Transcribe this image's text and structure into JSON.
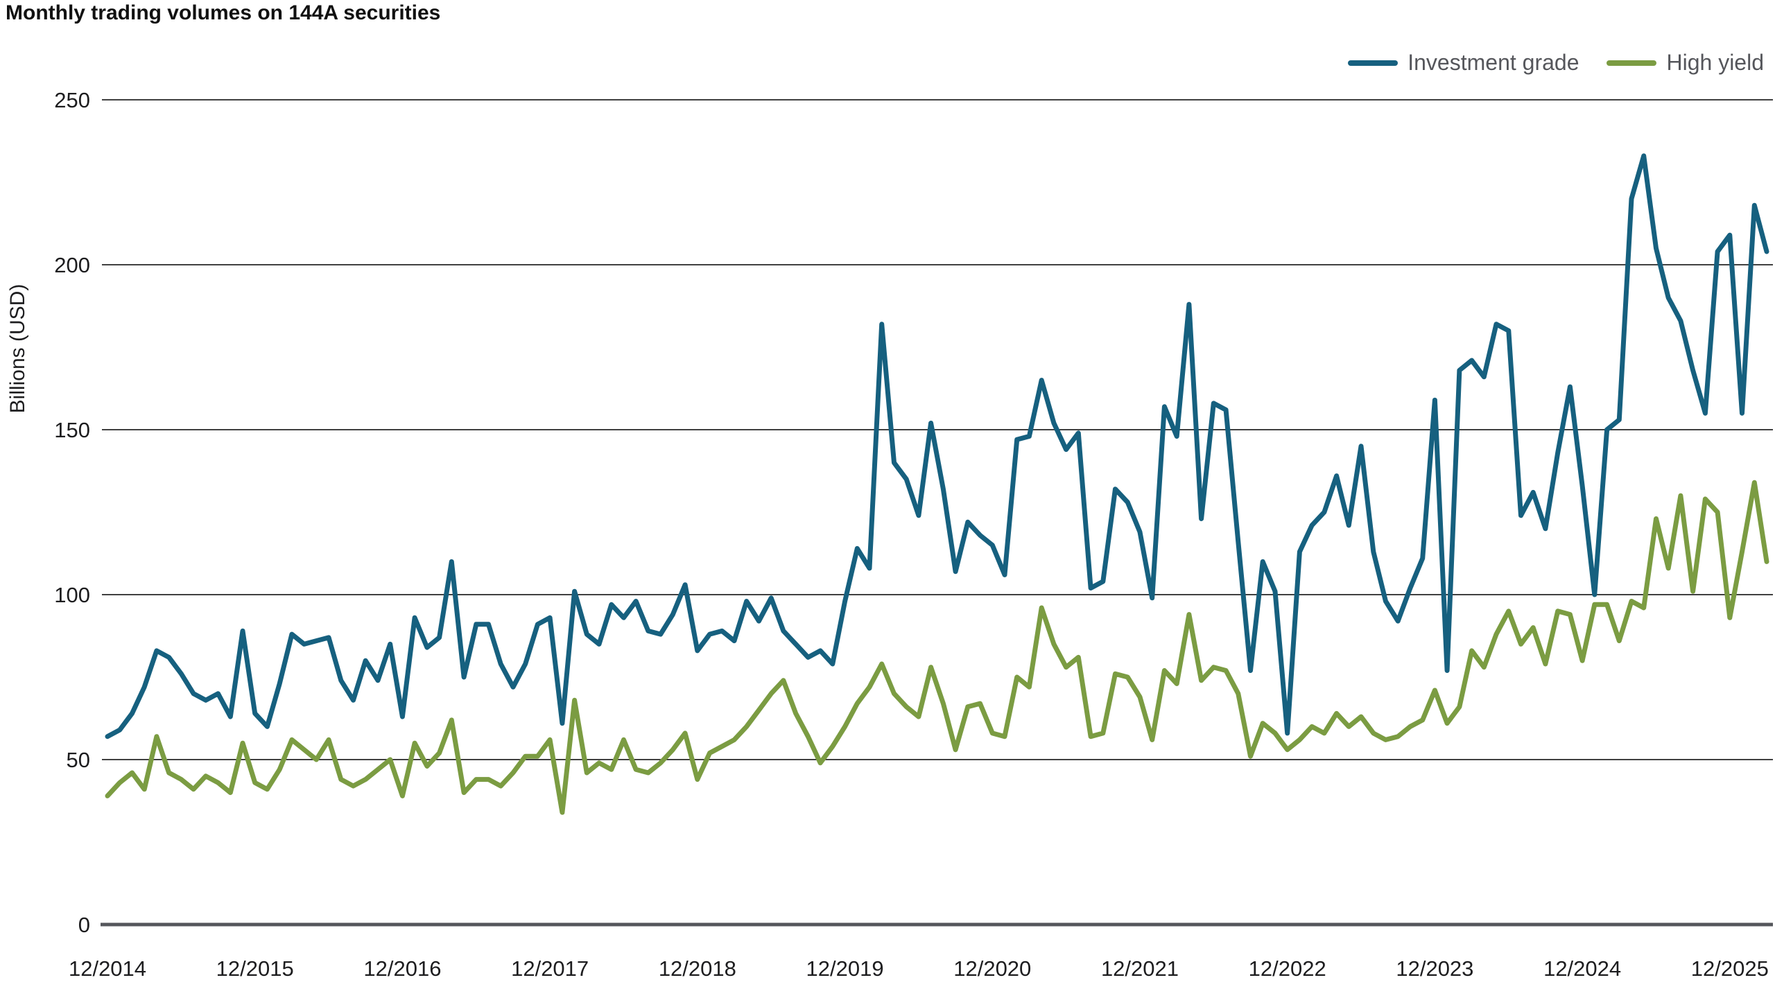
{
  "title": "Monthly trading volumes on 144A securities",
  "legend": {
    "items": [
      {
        "label": "Investment grade",
        "color": "#16607F"
      },
      {
        "label": "High yield",
        "color": "#7B9C42"
      }
    ]
  },
  "y_axis": {
    "label": "Billions (USD)",
    "ticks": [
      0,
      50,
      100,
      150,
      200,
      250
    ]
  },
  "x_axis": {
    "tick_labels": [
      "12/2014",
      "12/2015",
      "12/2016",
      "12/2017",
      "12/2018",
      "12/2019",
      "12/2020",
      "12/2021",
      "12/2022",
      "12/2023",
      "12/2024",
      "12/2025"
    ]
  },
  "chart_data": {
    "type": "line",
    "title": "Monthly trading volumes on 144A securities",
    "xlabel": "",
    "ylabel": "Billions (USD)",
    "ylim": [
      0,
      250
    ],
    "grid": "horizontal",
    "legend_position": "top-right",
    "x_tick_every": 12,
    "x": [
      "12/2014",
      "01/2015",
      "02/2015",
      "03/2015",
      "04/2015",
      "05/2015",
      "06/2015",
      "07/2015",
      "08/2015",
      "09/2015",
      "10/2015",
      "11/2015",
      "12/2015",
      "01/2016",
      "02/2016",
      "03/2016",
      "04/2016",
      "05/2016",
      "06/2016",
      "07/2016",
      "08/2016",
      "09/2016",
      "10/2016",
      "11/2016",
      "12/2016",
      "01/2017",
      "02/2017",
      "03/2017",
      "04/2017",
      "05/2017",
      "06/2017",
      "07/2017",
      "08/2017",
      "09/2017",
      "10/2017",
      "11/2017",
      "12/2017",
      "01/2018",
      "02/2018",
      "03/2018",
      "04/2018",
      "05/2018",
      "06/2018",
      "07/2018",
      "08/2018",
      "09/2018",
      "10/2018",
      "11/2018",
      "12/2018",
      "01/2019",
      "02/2019",
      "03/2019",
      "04/2019",
      "05/2019",
      "06/2019",
      "07/2019",
      "08/2019",
      "09/2019",
      "10/2019",
      "11/2019",
      "12/2019",
      "01/2020",
      "02/2020",
      "03/2020",
      "04/2020",
      "05/2020",
      "06/2020",
      "07/2020",
      "08/2020",
      "09/2020",
      "10/2020",
      "11/2020",
      "12/2020",
      "01/2021",
      "02/2021",
      "03/2021",
      "04/2021",
      "05/2021",
      "06/2021",
      "07/2021",
      "08/2021",
      "09/2021",
      "10/2021",
      "11/2021",
      "12/2021",
      "01/2022",
      "02/2022",
      "03/2022",
      "04/2022",
      "05/2022",
      "06/2022",
      "07/2022",
      "08/2022",
      "09/2022",
      "10/2022",
      "11/2022",
      "12/2022",
      "01/2023",
      "02/2023",
      "03/2023",
      "04/2023",
      "05/2023",
      "06/2023",
      "07/2023",
      "08/2023",
      "09/2023",
      "10/2023",
      "11/2023",
      "12/2023",
      "01/2024",
      "02/2024",
      "03/2024",
      "04/2024",
      "05/2024",
      "06/2024",
      "07/2024",
      "08/2024",
      "09/2024",
      "10/2024",
      "11/2024",
      "12/2024",
      "01/2025",
      "02/2025",
      "03/2025",
      "04/2025",
      "05/2025",
      "06/2025",
      "07/2025",
      "08/2025",
      "09/2025",
      "10/2025",
      "11/2025",
      "12/2025",
      "01/2026",
      "02/2026",
      "03/2026"
    ],
    "series": [
      {
        "name": "Investment grade",
        "color": "#16607F",
        "values": [
          57,
          59,
          64,
          72,
          83,
          81,
          76,
          70,
          68,
          70,
          63,
          89,
          64,
          60,
          73,
          88,
          85,
          86,
          87,
          74,
          68,
          80,
          74,
          85,
          63,
          93,
          84,
          87,
          110,
          75,
          91,
          91,
          79,
          72,
          79,
          91,
          93,
          61,
          101,
          88,
          85,
          97,
          93,
          98,
          89,
          88,
          94,
          103,
          83,
          88,
          89,
          86,
          98,
          92,
          99,
          89,
          85,
          81,
          83,
          79,
          98,
          114,
          108,
          182,
          140,
          135,
          124,
          152,
          132,
          107,
          122,
          118,
          115,
          106,
          147,
          148,
          165,
          152,
          144,
          149,
          102,
          104,
          132,
          128,
          119,
          99,
          157,
          148,
          188,
          123,
          158,
          156,
          116,
          77,
          110,
          101,
          58,
          113,
          121,
          125,
          136,
          121,
          145,
          113,
          98,
          92,
          102,
          111,
          159,
          77,
          168,
          171,
          166,
          182,
          180,
          124,
          131,
          120,
          143,
          163,
          133,
          100,
          150,
          153,
          220,
          233,
          205,
          190,
          183,
          168,
          155,
          204,
          209,
          155,
          218,
          204
        ]
      },
      {
        "name": "High yield",
        "color": "#7B9C42",
        "values": [
          39,
          43,
          46,
          41,
          57,
          46,
          44,
          41,
          45,
          43,
          40,
          55,
          43,
          41,
          47,
          56,
          53,
          50,
          56,
          44,
          42,
          44,
          47,
          50,
          39,
          55,
          48,
          52,
          62,
          40,
          44,
          44,
          42,
          46,
          51,
          51,
          56,
          34,
          68,
          46,
          49,
          47,
          56,
          47,
          46,
          49,
          53,
          58,
          44,
          52,
          54,
          56,
          60,
          65,
          70,
          74,
          64,
          57,
          49,
          54,
          60,
          67,
          72,
          79,
          70,
          66,
          63,
          78,
          67,
          53,
          66,
          67,
          58,
          57,
          75,
          72,
          96,
          85,
          78,
          81,
          57,
          58,
          76,
          75,
          69,
          56,
          77,
          73,
          94,
          74,
          78,
          77,
          70,
          51,
          61,
          58,
          53,
          56,
          60,
          58,
          64,
          60,
          63,
          58,
          56,
          57,
          60,
          62,
          71,
          61,
          66,
          83,
          78,
          88,
          95,
          85,
          90,
          79,
          95,
          94,
          80,
          97,
          97,
          86,
          98,
          96,
          123,
          108,
          130,
          101,
          129,
          125,
          93,
          113,
          134,
          110
        ]
      }
    ],
    "styles": {
      "line_width": 7,
      "gridline_color": "#000000",
      "gridline_width": 1.5,
      "axis_line_color": "#54565B",
      "axis_line_width": 5,
      "tick_label_color": "#1d1d1f",
      "background": "#ffffff"
    }
  }
}
